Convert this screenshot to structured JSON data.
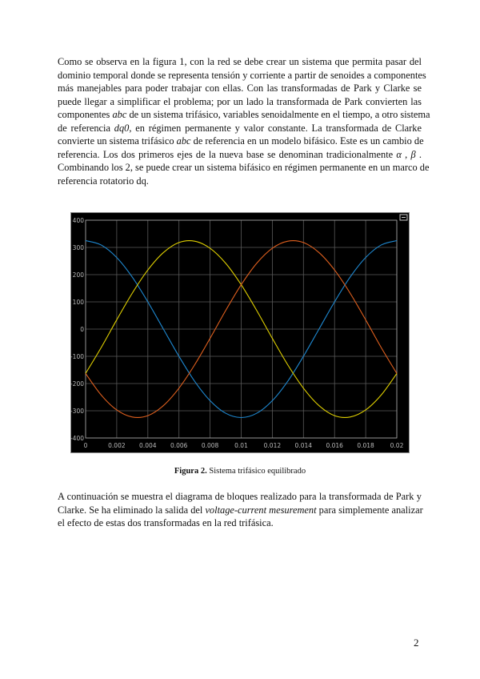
{
  "paragraph1": [
    [
      {
        "t": "Como se observa en la figura 1, con la red se debe crear un sistema que permita pasar del"
      }
    ],
    [
      {
        "t": "dominio temporal donde se representa tensión y corriente a partir de senoides a componentes"
      }
    ],
    [
      {
        "t": "más manejables para poder trabajar con ellas. Con las transformadas de Park y Clarke se"
      }
    ],
    [
      {
        "t": "puede llegar a simplificar el problema; por un lado la transformada de Park convierten las"
      }
    ],
    [
      {
        "t": "componentes "
      },
      {
        "t": "abc",
        "i": true
      },
      {
        "t": " de un sistema trifásico, variables senoidalmente en el tiempo, a otro sistema"
      }
    ],
    [
      {
        "t": "de referencia "
      },
      {
        "t": "dq0",
        "i": true
      },
      {
        "t": ", en régimen permanente y valor constante. La transformada de Clarke"
      }
    ],
    [
      {
        "t": "convierte un sistema trifásico "
      },
      {
        "t": "abc",
        "i": true
      },
      {
        "t": " de referencia en un modelo bifásico. Este es un cambio de"
      }
    ],
    [
      {
        "t": "referencia. Los dos primeros ejes de la nueva base se denominan tradicionalmente "
      },
      {
        "t": "α",
        "i": true
      },
      {
        "t": " , "
      },
      {
        "t": "β",
        "i": true
      },
      {
        "t": " ."
      }
    ],
    [
      {
        "t": "Combinando los 2, se puede crear un sistema bifásico en régimen permanente en un marco de"
      }
    ],
    [
      {
        "t": "referencia rotatorio dq."
      }
    ]
  ],
  "caption": {
    "label": "Figura 2.",
    "text": " Sistema trifásico equilibrado"
  },
  "paragraph2": [
    [
      {
        "t": "A continuación se muestra el diagrama de bloques realizado para la transformada de Park y"
      }
    ],
    [
      {
        "t": "Clarke. Se ha eliminado la salida del "
      },
      {
        "t": "voltage-current mesurement",
        "i": true
      },
      {
        "t": " para simplemente analizar"
      }
    ],
    [
      {
        "t": "el efecto de estas dos transformadas en la red trifásica."
      }
    ]
  ],
  "page_number": "2",
  "chart_data": {
    "type": "line",
    "background": "#000000",
    "grid": true,
    "xlim": [
      0,
      0.02
    ],
    "ylim": [
      -400,
      400
    ],
    "xticks": [
      "0",
      "0.002",
      "0.004",
      "0.006",
      "0.008",
      "0.01",
      "0.012",
      "0.014",
      "0.016",
      "0.018",
      "0.02"
    ],
    "yticks": [
      "400",
      "300",
      "200",
      "100",
      "0",
      "-100",
      "-200",
      "-300",
      "-400"
    ],
    "x": [
      0,
      0.001,
      0.002,
      0.003,
      0.004,
      0.005,
      0.006,
      0.007,
      0.008,
      0.009,
      0.01,
      0.011,
      0.012,
      0.013,
      0.014,
      0.015,
      0.016,
      0.017,
      0.018,
      0.019,
      0.02
    ],
    "series": [
      {
        "color": "#1e88d0",
        "values": [
          325,
          309,
          263,
          191,
          100,
          0,
          -100,
          -191,
          -263,
          -309,
          -325,
          -309,
          -263,
          -191,
          -100,
          0,
          100,
          191,
          263,
          309,
          325
        ]
      },
      {
        "color": "#e0d000",
        "values": [
          -163,
          -68,
          34,
          132,
          217,
          281,
          318,
          323,
          297,
          242,
          163,
          68,
          -34,
          -132,
          -217,
          -281,
          -318,
          -323,
          -297,
          -242,
          -163
        ]
      },
      {
        "color": "#e0601e",
        "values": [
          -163,
          -242,
          -297,
          -323,
          -318,
          -281,
          -217,
          -132,
          -34,
          68,
          163,
          242,
          297,
          323,
          318,
          281,
          217,
          132,
          34,
          -68,
          -163
        ]
      }
    ]
  }
}
